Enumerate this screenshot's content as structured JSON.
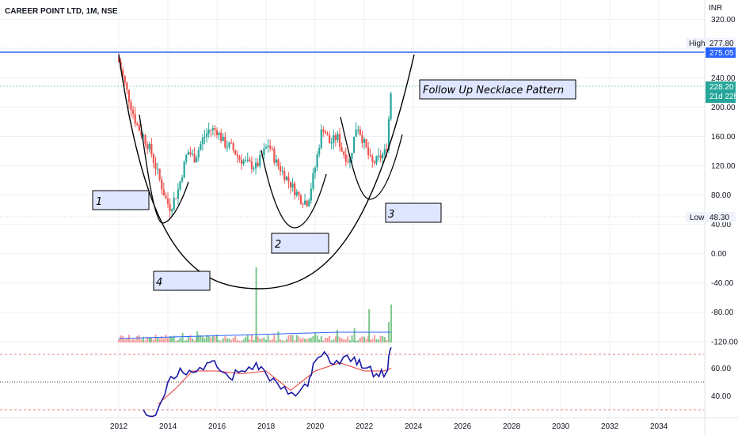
{
  "header": {
    "title": "CAREER POINT LTD, 1M, NSE",
    "currency": "INR"
  },
  "colors": {
    "up": "#26a69a",
    "down": "#ef5350",
    "blue": "#2962ff",
    "ma_vol": "#2962ff",
    "rsi": "#1a1aa6",
    "rsi_ma": "#e53935",
    "vol_up": "#7cc58a",
    "vol_down": "#f19b97",
    "grid": "#eef0f3"
  },
  "price_axis": {
    "ticks": [
      "320.00",
      "240.00",
      "200.00",
      "160.00",
      "120.00",
      "80.00",
      "40.00",
      "0.00",
      "-40.00",
      "-80.00",
      "-120.00"
    ],
    "high_label": "High",
    "high_value": "277.80",
    "low_label": "Low",
    "low_value": "48.30",
    "hline_value": "275.05",
    "last_price": "228.20",
    "countdown": "21d 22h"
  },
  "rsi_axis": {
    "ticks": [
      "60.00",
      "40.00"
    ]
  },
  "time_axis": {
    "ticks": [
      "2012",
      "2014",
      "2016",
      "2018",
      "2020",
      "2022",
      "2024",
      "2026",
      "2028",
      "2030",
      "2032",
      "2034"
    ]
  },
  "annotations": {
    "title": "Follow Up Necklace Pattern",
    "labels": [
      "1",
      "2",
      "3",
      "4"
    ]
  },
  "chart_data": {
    "type": "candlestick",
    "title": "CAREER POINT LTD, 1M, NSE",
    "price_range": [
      -120,
      320
    ],
    "horizontal_line": 275.05,
    "high": 277.8,
    "low": 48.3,
    "last": 228.2,
    "price_path": [
      {
        "t": 2012.0,
        "p": 262
      },
      {
        "t": 2012.3,
        "p": 225
      },
      {
        "t": 2012.7,
        "p": 178
      },
      {
        "t": 2013.0,
        "p": 160
      },
      {
        "t": 2013.3,
        "p": 140
      },
      {
        "t": 2013.6,
        "p": 108
      },
      {
        "t": 2013.9,
        "p": 75
      },
      {
        "t": 2014.1,
        "p": 62
      },
      {
        "t": 2014.4,
        "p": 85
      },
      {
        "t": 2014.8,
        "p": 140
      },
      {
        "t": 2015.1,
        "p": 130
      },
      {
        "t": 2015.4,
        "p": 155
      },
      {
        "t": 2015.7,
        "p": 170
      },
      {
        "t": 2016.0,
        "p": 168
      },
      {
        "t": 2016.3,
        "p": 150
      },
      {
        "t": 2016.6,
        "p": 145
      },
      {
        "t": 2016.9,
        "p": 130
      },
      {
        "t": 2017.3,
        "p": 122
      },
      {
        "t": 2017.6,
        "p": 118
      },
      {
        "t": 2017.9,
        "p": 138
      },
      {
        "t": 2018.1,
        "p": 150
      },
      {
        "t": 2018.4,
        "p": 125
      },
      {
        "t": 2018.8,
        "p": 105
      },
      {
        "t": 2019.1,
        "p": 90
      },
      {
        "t": 2019.4,
        "p": 75
      },
      {
        "t": 2019.7,
        "p": 70
      },
      {
        "t": 2020.0,
        "p": 118
      },
      {
        "t": 2020.3,
        "p": 175
      },
      {
        "t": 2020.6,
        "p": 150
      },
      {
        "t": 2020.9,
        "p": 160
      },
      {
        "t": 2021.1,
        "p": 140
      },
      {
        "t": 2021.4,
        "p": 125
      },
      {
        "t": 2021.7,
        "p": 178
      },
      {
        "t": 2022.0,
        "p": 150
      },
      {
        "t": 2022.3,
        "p": 122
      },
      {
        "t": 2022.6,
        "p": 130
      },
      {
        "t": 2022.9,
        "p": 140
      },
      {
        "t": 2023.1,
        "p": 228
      }
    ],
    "volume_bars": [
      {
        "t": 2013.3,
        "v": 6
      },
      {
        "t": 2014.1,
        "v": 8
      },
      {
        "t": 2014.6,
        "v": 12
      },
      {
        "t": 2015.2,
        "v": 14
      },
      {
        "t": 2016.0,
        "v": 10
      },
      {
        "t": 2017.6,
        "v": 95
      },
      {
        "t": 2018.5,
        "v": 14
      },
      {
        "t": 2020.0,
        "v": 12
      },
      {
        "t": 2020.9,
        "v": 16
      },
      {
        "t": 2021.6,
        "v": 18
      },
      {
        "t": 2022.2,
        "v": 42
      },
      {
        "t": 2023.0,
        "v": 26
      },
      {
        "t": 2023.1,
        "v": 48
      }
    ],
    "rsi_path": [
      {
        "t": 2013.0,
        "v": 30
      },
      {
        "t": 2013.5,
        "v": 26
      },
      {
        "t": 2014.0,
        "v": 50
      },
      {
        "t": 2014.5,
        "v": 60
      },
      {
        "t": 2015.0,
        "v": 57
      },
      {
        "t": 2015.6,
        "v": 64
      },
      {
        "t": 2016.0,
        "v": 61
      },
      {
        "t": 2016.5,
        "v": 53
      },
      {
        "t": 2017.0,
        "v": 58
      },
      {
        "t": 2017.6,
        "v": 64
      },
      {
        "t": 2018.0,
        "v": 56
      },
      {
        "t": 2018.6,
        "v": 45
      },
      {
        "t": 2019.2,
        "v": 40
      },
      {
        "t": 2019.7,
        "v": 47
      },
      {
        "t": 2020.0,
        "v": 65
      },
      {
        "t": 2020.5,
        "v": 69
      },
      {
        "t": 2021.0,
        "v": 63
      },
      {
        "t": 2021.6,
        "v": 68
      },
      {
        "t": 2022.0,
        "v": 60
      },
      {
        "t": 2022.5,
        "v": 56
      },
      {
        "t": 2022.9,
        "v": 57
      },
      {
        "t": 2023.1,
        "v": 75
      }
    ],
    "rsi_ma_path": [
      {
        "t": 2013.6,
        "v": 34
      },
      {
        "t": 2014.3,
        "v": 45
      },
      {
        "t": 2015.0,
        "v": 58
      },
      {
        "t": 2016.0,
        "v": 58
      },
      {
        "t": 2017.0,
        "v": 56
      },
      {
        "t": 2018.0,
        "v": 58
      },
      {
        "t": 2019.0,
        "v": 44
      },
      {
        "t": 2020.0,
        "v": 58
      },
      {
        "t": 2021.0,
        "v": 64
      },
      {
        "t": 2022.0,
        "v": 58
      },
      {
        "t": 2022.8,
        "v": 58
      },
      {
        "t": 2023.1,
        "v": 60
      }
    ]
  }
}
